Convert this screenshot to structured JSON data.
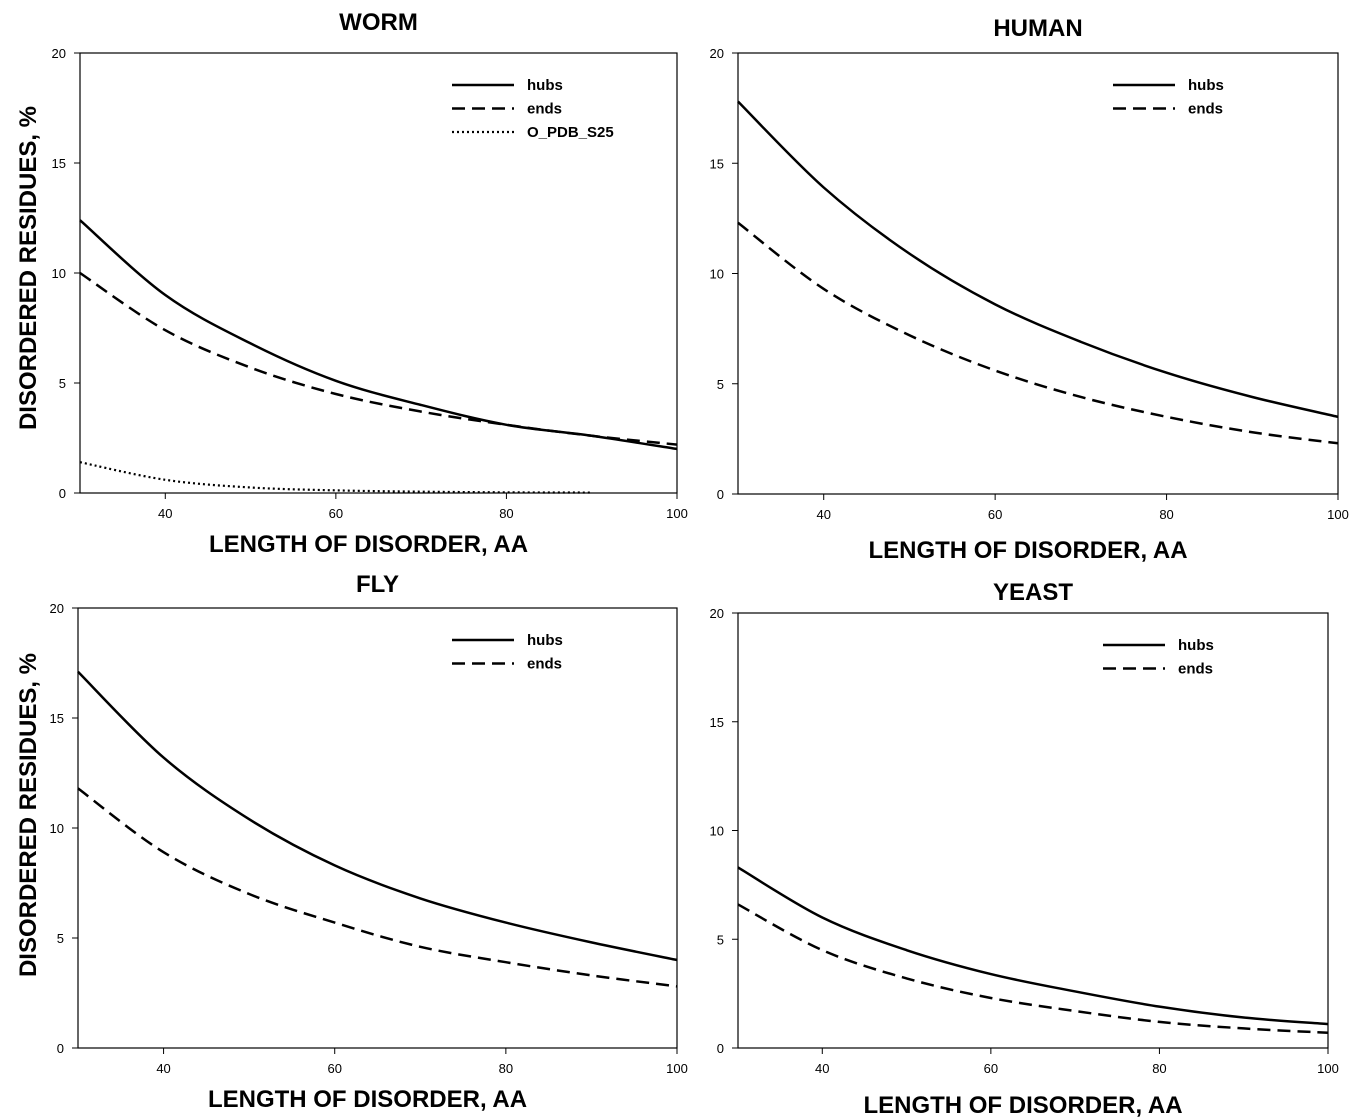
{
  "figure": {
    "y_axis_label": "DISORDERED RESIDUES, %"
  },
  "chart_data": [
    {
      "type": "line",
      "title": "WORM",
      "xlabel": "LENGTH OF DISORDER, AA",
      "ylabel": "DISORDERED RESIDUES, %",
      "xlim": [
        30,
        100
      ],
      "ylim": [
        0,
        20
      ],
      "xticks": [
        40,
        60,
        80,
        100
      ],
      "yticks": [
        0,
        5,
        10,
        15,
        20
      ],
      "legend_position": "top-right",
      "x": [
        30,
        40,
        50,
        60,
        70,
        80,
        90,
        100
      ],
      "series": [
        {
          "name": "hubs",
          "style": "solid",
          "values": [
            12.4,
            9.0,
            6.8,
            5.1,
            4.0,
            3.1,
            2.6,
            2.0
          ]
        },
        {
          "name": "ends",
          "style": "dashed",
          "values": [
            10.0,
            7.4,
            5.7,
            4.5,
            3.7,
            3.1,
            2.6,
            2.2
          ]
        },
        {
          "name": "O_PDB_S25",
          "style": "dotted",
          "x": [
            30,
            40,
            50,
            60,
            70,
            80,
            90
          ],
          "values": [
            1.4,
            0.6,
            0.25,
            0.12,
            0.06,
            0.03,
            0.02
          ]
        }
      ]
    },
    {
      "type": "line",
      "title": "HUMAN",
      "xlabel": "LENGTH OF DISORDER, AA",
      "ylabel": "",
      "xlim": [
        30,
        100
      ],
      "ylim": [
        0,
        20
      ],
      "xticks": [
        40,
        60,
        80,
        100
      ],
      "yticks": [
        0,
        5,
        10,
        15,
        20
      ],
      "legend_position": "top-right",
      "x": [
        30,
        40,
        50,
        60,
        70,
        80,
        90,
        100
      ],
      "series": [
        {
          "name": "hubs",
          "style": "solid",
          "values": [
            17.8,
            13.9,
            10.9,
            8.6,
            6.9,
            5.5,
            4.4,
            3.5
          ]
        },
        {
          "name": "ends",
          "style": "dashed",
          "values": [
            12.3,
            9.3,
            7.2,
            5.6,
            4.4,
            3.5,
            2.8,
            2.3
          ]
        }
      ]
    },
    {
      "type": "line",
      "title": "FLY",
      "xlabel": "LENGTH OF DISORDER, AA",
      "ylabel": "DISORDERED RESIDUES, %",
      "xlim": [
        30,
        100
      ],
      "ylim": [
        0,
        20
      ],
      "xticks": [
        40,
        60,
        80,
        100
      ],
      "yticks": [
        0,
        5,
        10,
        15,
        20
      ],
      "legend_position": "top-right",
      "x": [
        30,
        40,
        50,
        60,
        70,
        80,
        90,
        100
      ],
      "series": [
        {
          "name": "hubs",
          "style": "solid",
          "values": [
            17.1,
            13.2,
            10.4,
            8.3,
            6.8,
            5.7,
            4.8,
            4.0
          ]
        },
        {
          "name": "ends",
          "style": "dashed",
          "values": [
            11.8,
            8.9,
            7.0,
            5.7,
            4.6,
            3.9,
            3.3,
            2.8
          ]
        }
      ]
    },
    {
      "type": "line",
      "title": "YEAST",
      "xlabel": "LENGTH OF DISORDER, AA",
      "ylabel": "",
      "xlim": [
        30,
        100
      ],
      "ylim": [
        0,
        20
      ],
      "xticks": [
        40,
        60,
        80,
        100
      ],
      "yticks": [
        0,
        5,
        10,
        15,
        20
      ],
      "legend_position": "top-right",
      "x": [
        30,
        40,
        50,
        60,
        70,
        80,
        90,
        100
      ],
      "series": [
        {
          "name": "hubs",
          "style": "solid",
          "values": [
            8.3,
            6.0,
            4.5,
            3.4,
            2.6,
            1.9,
            1.4,
            1.1
          ]
        },
        {
          "name": "ends",
          "style": "dashed",
          "values": [
            6.6,
            4.5,
            3.2,
            2.3,
            1.7,
            1.2,
            0.9,
            0.7
          ]
        }
      ]
    }
  ]
}
